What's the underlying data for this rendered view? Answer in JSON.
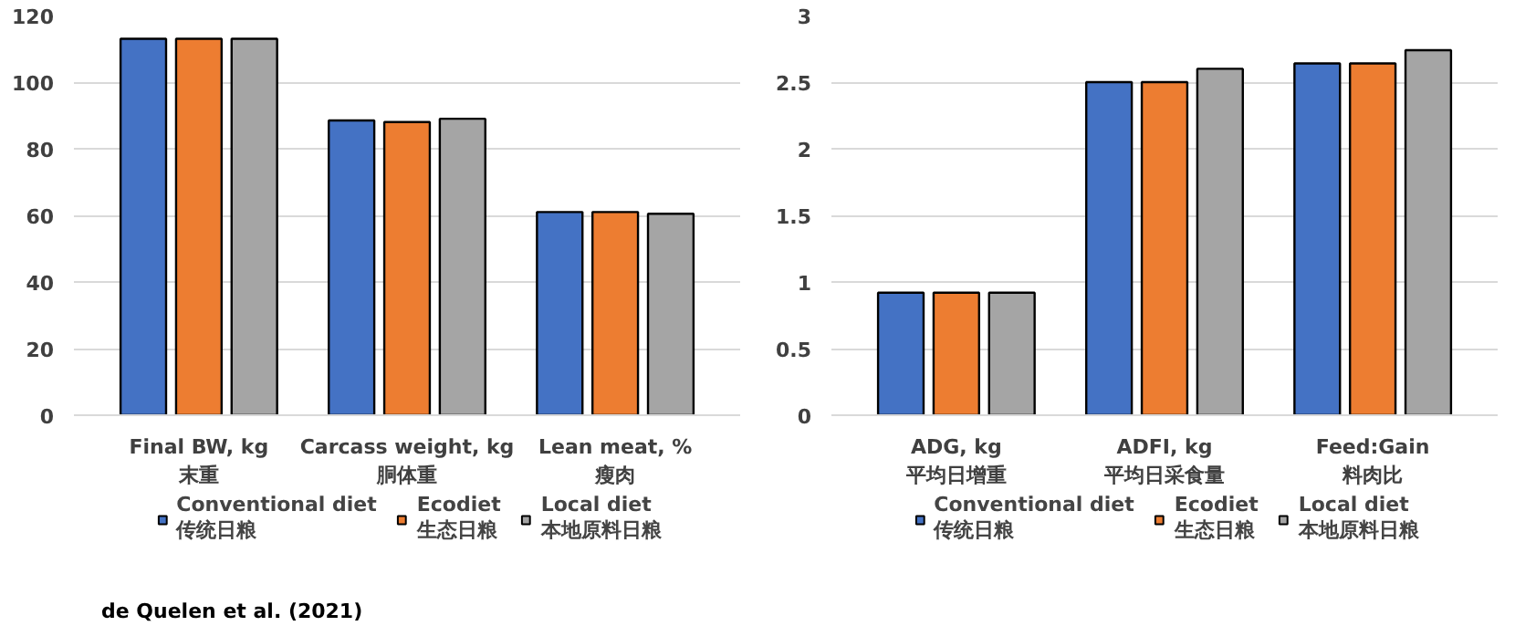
{
  "chart_data": [
    {
      "type": "bar",
      "categories": [
        "Final BW, kg\n末重",
        "Carcass weight, kg\n胴体重",
        "Lean meat, %\n瘦肉"
      ],
      "series": [
        {
          "name": "Conventional diet\n传统日粮",
          "color": "#4472c4",
          "values": [
            113,
            88.5,
            61
          ]
        },
        {
          "name": "Ecodiet\n生态日粮",
          "color": "#ed7d31",
          "values": [
            113,
            88,
            61
          ]
        },
        {
          "name": "Local diet\n本地原料日粮",
          "color": "#a5a5a5",
          "values": [
            113,
            89,
            60.5
          ]
        }
      ],
      "ylim": [
        0,
        120
      ],
      "yticks": [
        0,
        20,
        40,
        60,
        80,
        100,
        120
      ],
      "grid": "y",
      "legend": "bottom",
      "annotations": [
        "de Quelen et al. (2021)"
      ]
    },
    {
      "type": "bar",
      "categories": [
        "ADG, kg\n平均日增重",
        "ADFI, kg\n平均日采食量",
        "Feed:Gain\n料肉比"
      ],
      "series": [
        {
          "name": "Conventional diet\n传统日粮",
          "color": "#4472c4",
          "values": [
            0.92,
            2.5,
            2.64
          ]
        },
        {
          "name": "Ecodiet\n生态日粮",
          "color": "#ed7d31",
          "values": [
            0.92,
            2.5,
            2.64
          ]
        },
        {
          "name": "Local diet\n本地原料日粮",
          "color": "#a5a5a5",
          "values": [
            0.92,
            2.6,
            2.74
          ]
        }
      ],
      "ylim": [
        0,
        3
      ],
      "yticks": [
        0,
        0.5,
        1,
        1.5,
        2,
        2.5,
        3
      ],
      "grid": "y",
      "legend": "bottom"
    }
  ]
}
